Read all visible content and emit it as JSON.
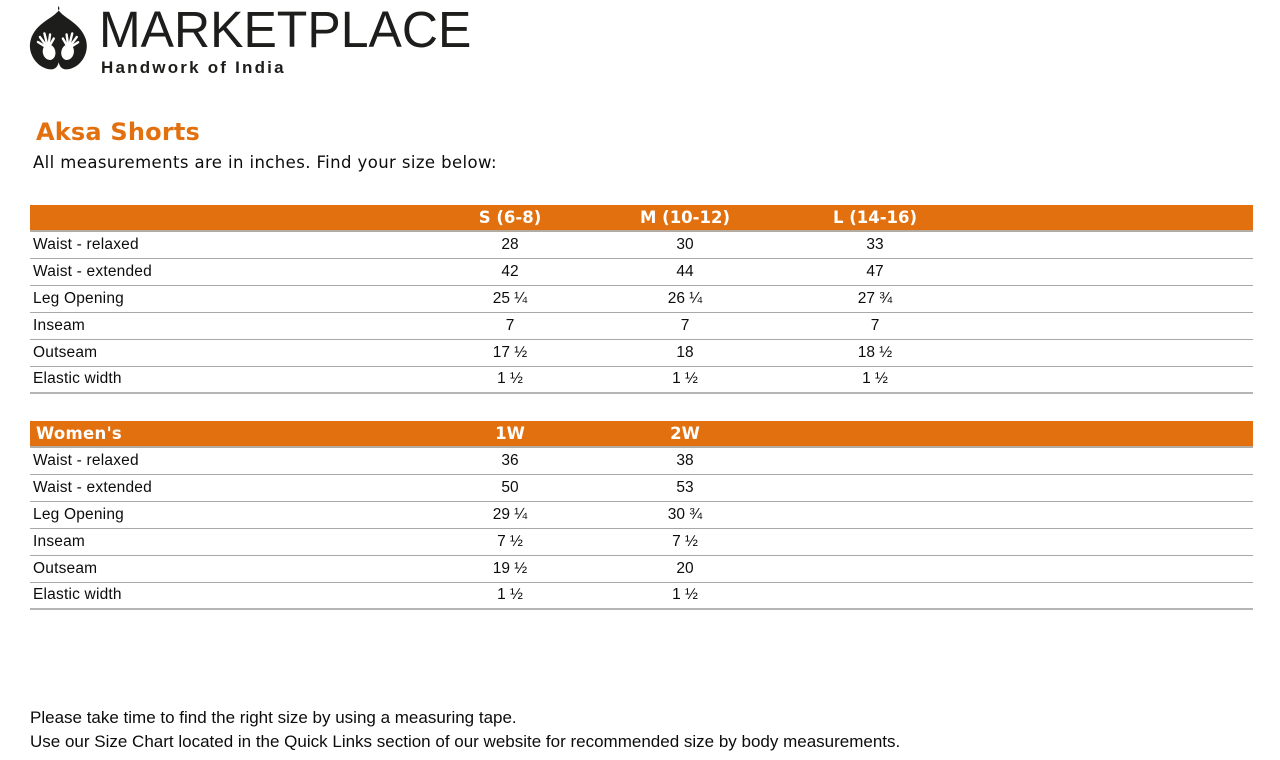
{
  "brand": {
    "name": "MARKETPLACE",
    "tagline": "Handwork of India"
  },
  "page": {
    "title": "Aksa Shorts",
    "subtitle": "All measurements are in inches. Find your size below:"
  },
  "colors": {
    "accent_orange": "#e2700e",
    "header_text": "#ffffff",
    "logo_black": "#1d1d1b"
  },
  "size_tables": [
    {
      "header_label": "",
      "columns": [
        "S (6-8)",
        "M (10-12)",
        "L (14-16)"
      ],
      "rows": [
        {
          "label": "Waist - relaxed",
          "values": [
            "28",
            "30",
            "33"
          ]
        },
        {
          "label": "Waist - extended",
          "values": [
            "42",
            "44",
            "47"
          ]
        },
        {
          "label": "Leg Opening",
          "values": [
            "25 ¼",
            "26 ¼",
            "27 ¾"
          ]
        },
        {
          "label": "Inseam",
          "values": [
            "7",
            "7",
            "7"
          ]
        },
        {
          "label": "Outseam",
          "values": [
            "17 ½",
            "18",
            "18 ½"
          ]
        },
        {
          "label": "Elastic width",
          "values": [
            "1 ½",
            "1 ½",
            "1 ½"
          ]
        }
      ]
    },
    {
      "header_label": "Women's",
      "columns": [
        "1W",
        "2W"
      ],
      "rows": [
        {
          "label": "Waist - relaxed",
          "values": [
            "36",
            "38"
          ]
        },
        {
          "label": "Waist - extended",
          "values": [
            "50",
            "53"
          ]
        },
        {
          "label": "Leg Opening",
          "values": [
            "29 ¼",
            "30 ¾"
          ]
        },
        {
          "label": "Inseam",
          "values": [
            "7 ½",
            "7 ½"
          ]
        },
        {
          "label": "Outseam",
          "values": [
            "19 ½",
            "20"
          ]
        },
        {
          "label": "Elastic width",
          "values": [
            "1 ½",
            "1 ½"
          ]
        }
      ]
    }
  ],
  "footer": {
    "line1": "Please take time to find the right size by using a measuring tape.",
    "line2": "Use our Size Chart located in the Quick Links section of our website for recommended size by body measurements."
  }
}
